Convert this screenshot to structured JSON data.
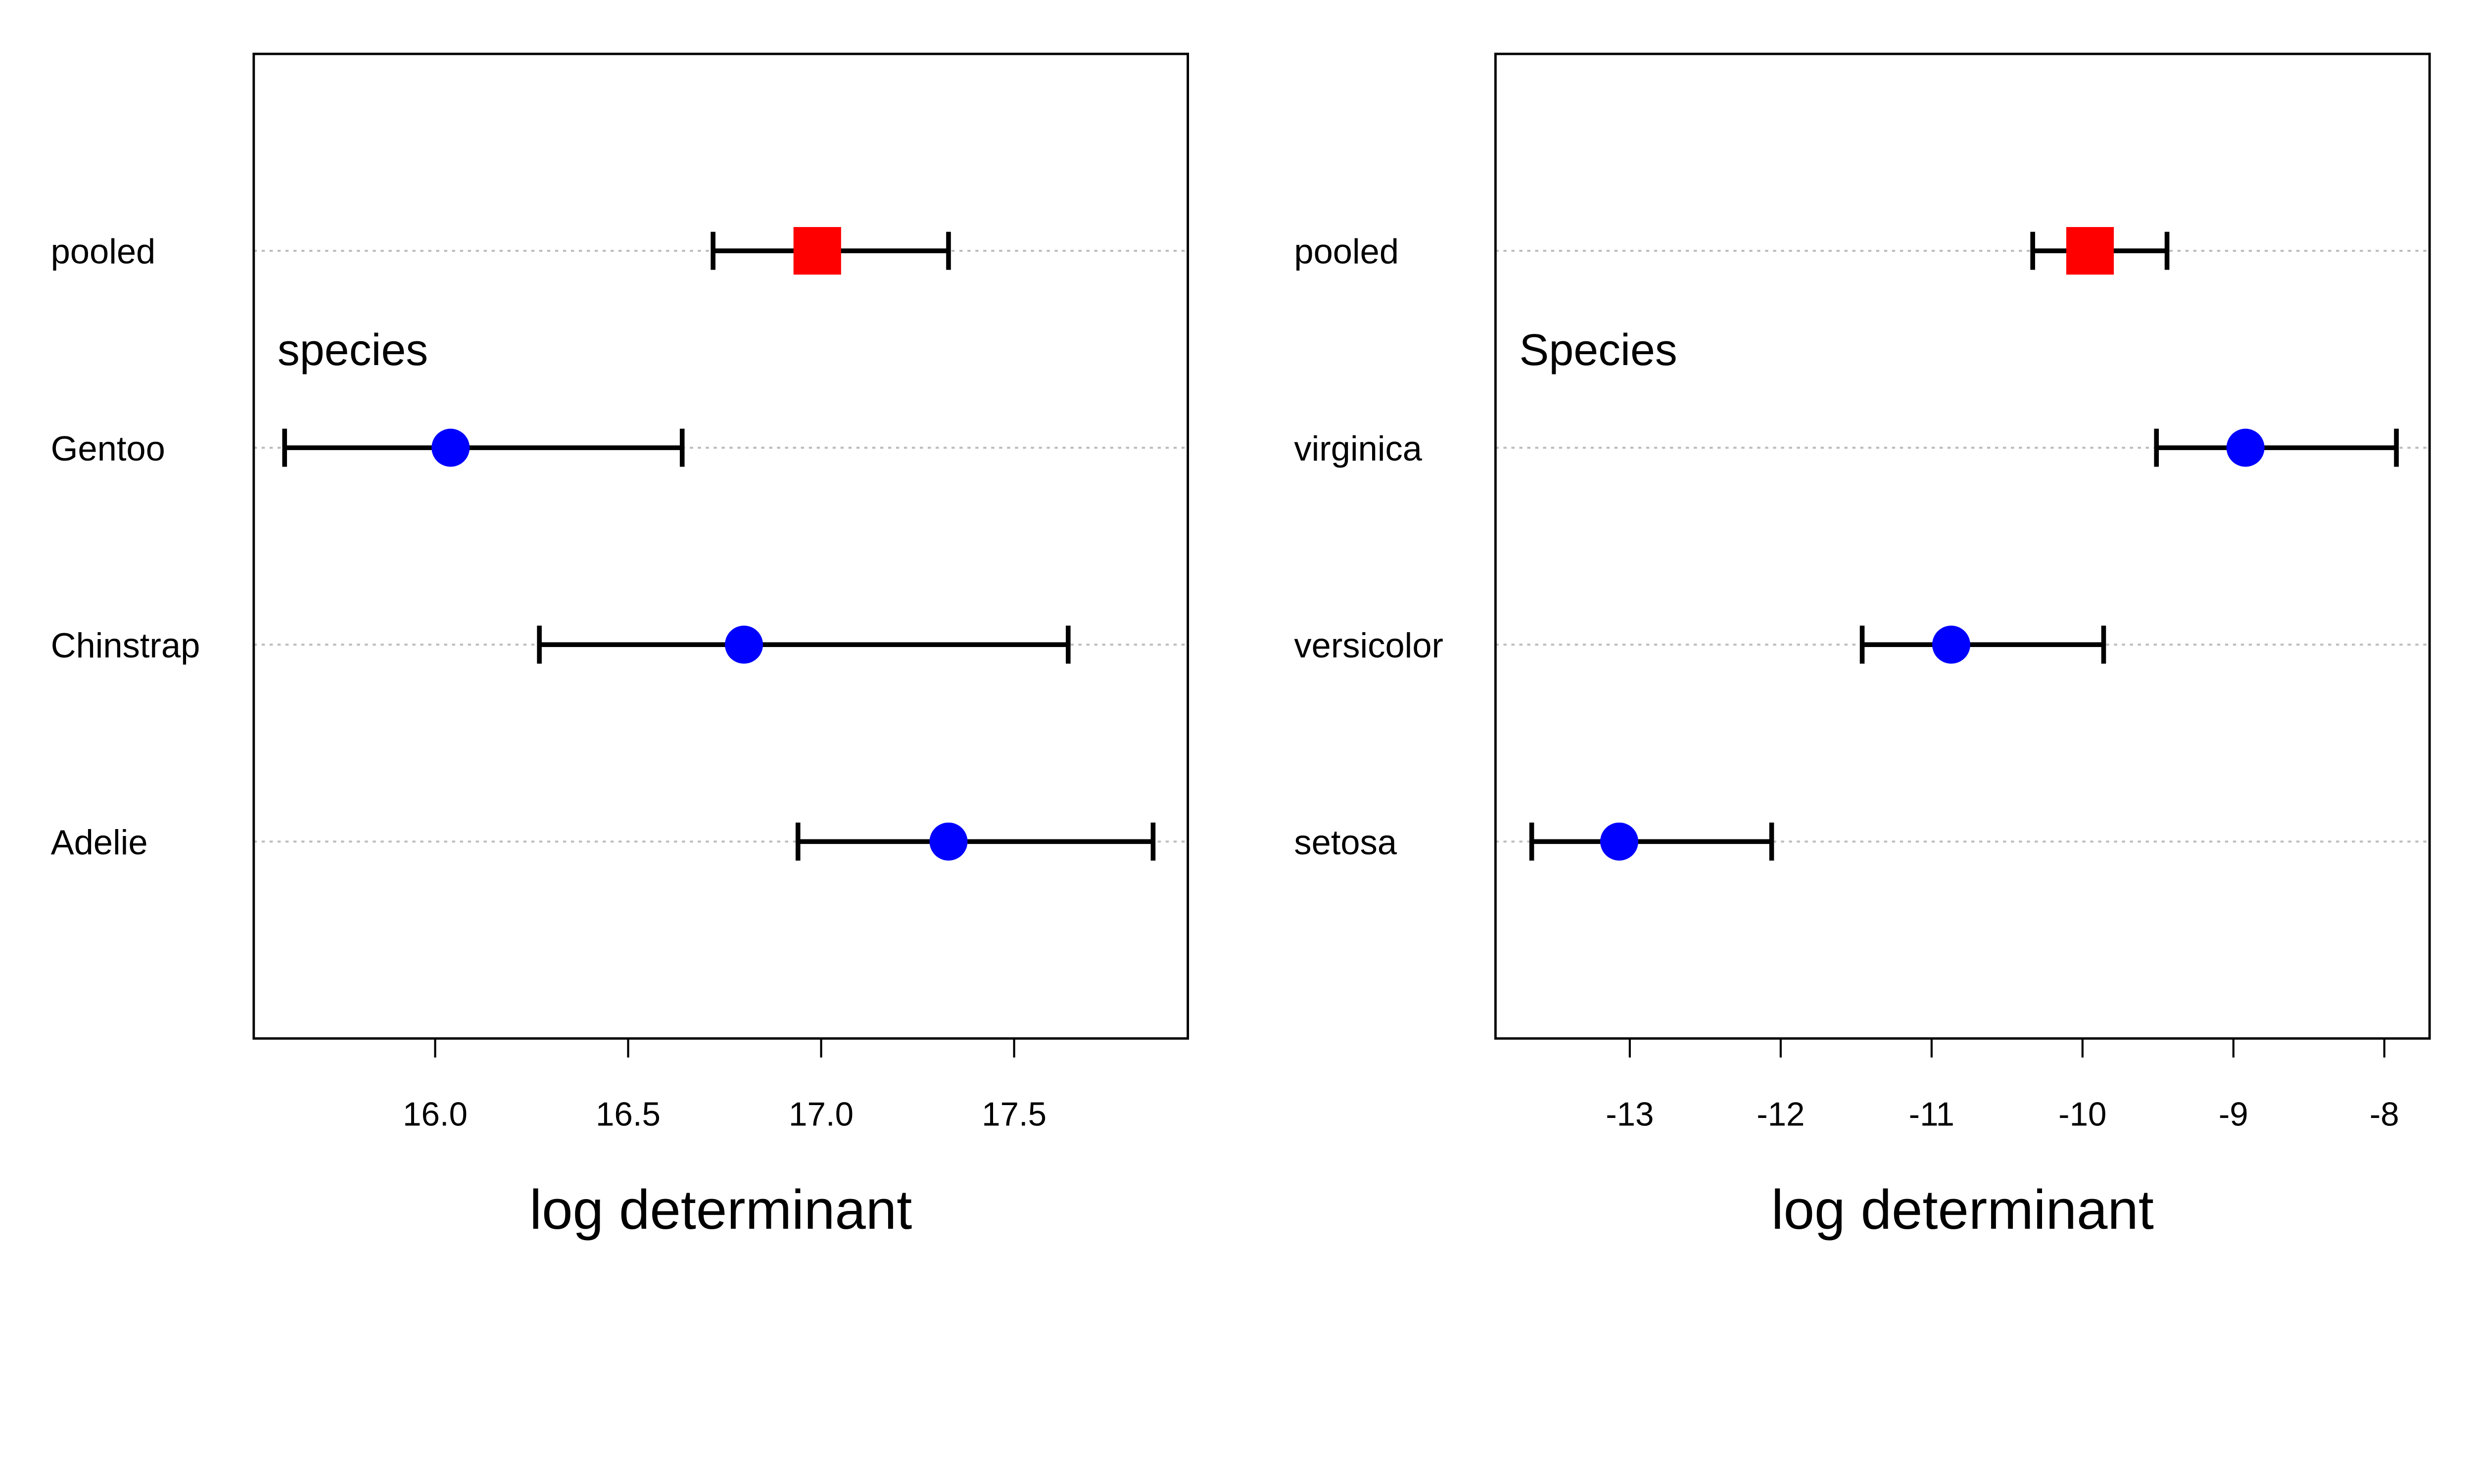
{
  "colors": {
    "group_point": "#0000FF",
    "pooled_point": "#FF0000",
    "interval": "#000000",
    "gridline": "#BEBEBE"
  },
  "chart_data": [
    {
      "type": "dot-interval",
      "title": "",
      "xlabel": "log determinant",
      "ylabel": "",
      "group_label": "species",
      "xlim": [
        15.53,
        17.95
      ],
      "xticks": [
        16.0,
        16.5,
        17.0,
        17.5
      ],
      "xtick_labels": [
        "16.0",
        "16.5",
        "17.0",
        "17.5"
      ],
      "grid": "horizontal dotted",
      "categories": [
        "Adelie",
        "Chinstrap",
        "Gentoo",
        "pooled"
      ],
      "values": [
        17.33,
        16.8,
        16.04,
        16.99
      ],
      "lower": [
        16.94,
        16.27,
        15.61,
        16.72
      ],
      "upper": [
        17.86,
        17.64,
        16.64,
        17.33
      ],
      "markers": [
        "circle",
        "circle",
        "circle",
        "square"
      ]
    },
    {
      "type": "dot-interval",
      "title": "",
      "xlabel": "log determinant",
      "ylabel": "",
      "group_label": "Species",
      "xlim": [
        -13.89,
        -7.7
      ],
      "xticks": [
        -13,
        -12,
        -11,
        -10,
        -9,
        -8
      ],
      "xtick_labels": [
        "-13",
        "-12",
        "-11",
        "-10",
        "-9",
        "-8"
      ],
      "grid": "horizontal dotted",
      "categories": [
        "setosa",
        "versicolor",
        "virginica",
        "pooled"
      ],
      "values": [
        -13.07,
        -10.87,
        -8.92,
        -9.95
      ],
      "lower": [
        -13.65,
        -11.46,
        -9.51,
        -10.33
      ],
      "upper": [
        -12.06,
        -9.86,
        -7.92,
        -9.44
      ],
      "markers": [
        "circle",
        "circle",
        "circle",
        "square"
      ]
    }
  ]
}
